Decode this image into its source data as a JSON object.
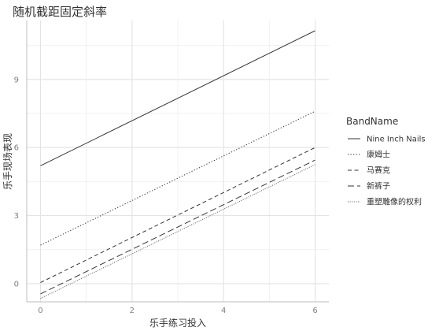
{
  "chart_data": {
    "type": "line",
    "title": "随机截距固定斜率",
    "xlabel": "乐手练习投入",
    "ylabel": "乐手现场表现",
    "xlim": [
      -0.3,
      6.3
    ],
    "ylim": [
      -0.8,
      11.6
    ],
    "x_ticks": [
      0,
      2,
      4,
      6
    ],
    "x_tick_labels": [
      "0",
      "2",
      "4",
      "6"
    ],
    "y_ticks": [
      0,
      3,
      6,
      9
    ],
    "y_tick_labels": [
      "0",
      "3",
      "6",
      "9"
    ],
    "grid": true,
    "legend": {
      "title": "BandName",
      "position": "right"
    },
    "series": [
      {
        "name": "Nine Inch Nails",
        "x": [
          0,
          6
        ],
        "y": [
          5.2,
          11.15
        ],
        "dash": "solid",
        "color": "#333333"
      },
      {
        "name": "康姆士",
        "x": [
          0,
          6
        ],
        "y": [
          1.7,
          7.6
        ],
        "dash": "dotted",
        "color": "#333333"
      },
      {
        "name": "马赛克",
        "x": [
          0,
          6
        ],
        "y": [
          0.05,
          6.0
        ],
        "dash": "dashed",
        "color": "#333333"
      },
      {
        "name": "新裤子",
        "x": [
          0,
          6
        ],
        "y": [
          -0.45,
          5.45
        ],
        "dash": "longdash",
        "color": "#333333"
      },
      {
        "name": "重塑雕像的权利",
        "x": [
          0,
          6
        ],
        "y": [
          -0.65,
          5.25
        ],
        "dash": "fine-dotted",
        "color": "#555555"
      }
    ]
  }
}
